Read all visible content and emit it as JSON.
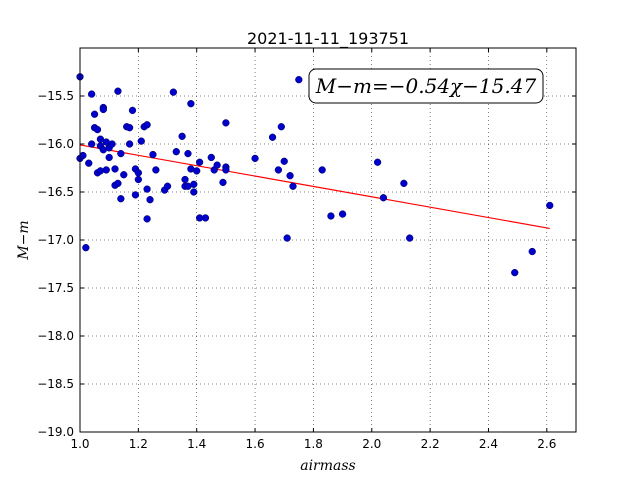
{
  "chart_data": {
    "type": "scatter",
    "title": "2021-11-11_193751",
    "xlabel": "airmass",
    "ylabel": "M−m",
    "xlim": [
      1.0,
      2.7
    ],
    "ylim": [
      -19.0,
      -15.0
    ],
    "y_inverted": true,
    "grid": true,
    "x_ticks": [
      "1.0",
      "1.2",
      "1.4",
      "1.6",
      "1.8",
      "2.0",
      "2.2",
      "2.4",
      "2.6"
    ],
    "y_ticks": [
      "−15.5",
      "−16.0",
      "−16.5",
      "−17.0",
      "−17.5",
      "−18.0",
      "−18.5",
      "−19.0"
    ],
    "annotation": "M−m=−0.54χ−15.47",
    "fit": {
      "slope": -0.54,
      "intercept": -15.47,
      "x_range": [
        1.0,
        2.61
      ],
      "color": "#ff0000"
    },
    "series": [
      {
        "color": "#0000cc",
        "points": [
          [
            1.0,
            -15.3
          ],
          [
            1.0,
            -16.15
          ],
          [
            1.01,
            -16.12
          ],
          [
            1.02,
            -17.08
          ],
          [
            1.03,
            -16.2
          ],
          [
            1.04,
            -16.0
          ],
          [
            1.04,
            -15.48
          ],
          [
            1.05,
            -15.69
          ],
          [
            1.05,
            -15.83
          ],
          [
            1.06,
            -15.85
          ],
          [
            1.06,
            -16.3
          ],
          [
            1.07,
            -15.95
          ],
          [
            1.07,
            -16.28
          ],
          [
            1.07,
            -16.02
          ],
          [
            1.08,
            -15.62
          ],
          [
            1.08,
            -15.64
          ],
          [
            1.08,
            -16.06
          ],
          [
            1.09,
            -16.27
          ],
          [
            1.09,
            -15.98
          ],
          [
            1.1,
            -16.04
          ],
          [
            1.1,
            -16.14
          ],
          [
            1.11,
            -16.0
          ],
          [
            1.12,
            -16.43
          ],
          [
            1.12,
            -16.26
          ],
          [
            1.13,
            -15.45
          ],
          [
            1.13,
            -16.41
          ],
          [
            1.14,
            -16.57
          ],
          [
            1.14,
            -16.1
          ],
          [
            1.15,
            -16.32
          ],
          [
            1.16,
            -15.82
          ],
          [
            1.17,
            -15.83
          ],
          [
            1.17,
            -16.0
          ],
          [
            1.18,
            -15.65
          ],
          [
            1.19,
            -16.53
          ],
          [
            1.19,
            -16.26
          ],
          [
            1.2,
            -16.3
          ],
          [
            1.2,
            -16.37
          ],
          [
            1.21,
            -15.97
          ],
          [
            1.22,
            -15.82
          ],
          [
            1.23,
            -15.8
          ],
          [
            1.23,
            -16.47
          ],
          [
            1.23,
            -16.78
          ],
          [
            1.24,
            -16.58
          ],
          [
            1.25,
            -16.11
          ],
          [
            1.26,
            -16.27
          ],
          [
            1.29,
            -16.48
          ],
          [
            1.3,
            -16.44
          ],
          [
            1.32,
            -15.46
          ],
          [
            1.33,
            -16.08
          ],
          [
            1.35,
            -15.92
          ],
          [
            1.36,
            -16.37
          ],
          [
            1.36,
            -16.44
          ],
          [
            1.37,
            -16.44
          ],
          [
            1.37,
            -16.1
          ],
          [
            1.38,
            -15.58
          ],
          [
            1.38,
            -16.26
          ],
          [
            1.39,
            -16.5
          ],
          [
            1.39,
            -16.42
          ],
          [
            1.4,
            -16.28
          ],
          [
            1.41,
            -16.77
          ],
          [
            1.41,
            -16.19
          ],
          [
            1.43,
            -16.77
          ],
          [
            1.45,
            -16.14
          ],
          [
            1.46,
            -16.27
          ],
          [
            1.47,
            -16.22
          ],
          [
            1.49,
            -16.4
          ],
          [
            1.5,
            -16.24
          ],
          [
            1.5,
            -16.27
          ],
          [
            1.5,
            -15.78
          ],
          [
            1.6,
            -16.15
          ],
          [
            1.66,
            -15.93
          ],
          [
            1.68,
            -16.27
          ],
          [
            1.69,
            -15.82
          ],
          [
            1.7,
            -16.18
          ],
          [
            1.71,
            -16.98
          ],
          [
            1.72,
            -16.33
          ],
          [
            1.73,
            -16.44
          ],
          [
            1.75,
            -15.33
          ],
          [
            1.83,
            -16.27
          ],
          [
            1.86,
            -16.75
          ],
          [
            1.9,
            -16.73
          ],
          [
            2.02,
            -16.19
          ],
          [
            2.04,
            -16.56
          ],
          [
            2.11,
            -16.41
          ],
          [
            2.13,
            -16.98
          ],
          [
            2.49,
            -17.34
          ],
          [
            2.55,
            -17.12
          ],
          [
            2.61,
            -16.64
          ]
        ]
      }
    ]
  }
}
